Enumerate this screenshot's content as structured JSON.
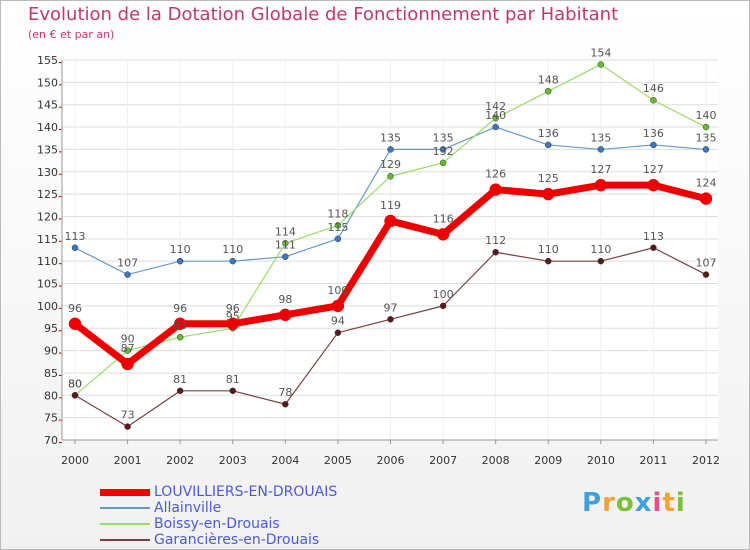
{
  "title": "Evolution de la Dotation Globale de Fonctionnement par Habitant",
  "subtitle": "(en € et par an)",
  "logo": {
    "text": "Proxiti",
    "colors": [
      "#3fa1dc",
      "#f3a23a",
      "#7bbf3a",
      "#3fa1dc",
      "#e94e8a",
      "#f3a23a",
      "#7bbf3a"
    ]
  },
  "chart_data": {
    "type": "line",
    "title": "Evolution de la Dotation Globale de Fonctionnement par Habitant",
    "subtitle": "(en € et par an)",
    "xlabel": "",
    "ylabel": "",
    "x": [
      "2000",
      "2001",
      "2002",
      "2003",
      "2004",
      "2005",
      "2006",
      "2007",
      "2008",
      "2009",
      "2010",
      "2011",
      "2012"
    ],
    "ylim": [
      70,
      155
    ],
    "yticks": [
      70,
      75,
      80,
      85,
      90,
      95,
      100,
      105,
      110,
      115,
      120,
      125,
      130,
      135,
      140,
      145,
      150,
      155
    ],
    "grid": true,
    "legend_position": "bottom-left",
    "series": [
      {
        "name": "Allainville",
        "color": "#6699cc",
        "marker": "#3a78c0",
        "width": 1.2,
        "dot": 3,
        "values": [
          113,
          107,
          110,
          110,
          111,
          115,
          135,
          135,
          140,
          136,
          135,
          136,
          135
        ]
      },
      {
        "name": "Boissy-en-Drouais",
        "color": "#99dd66",
        "marker": "#66bb33",
        "width": 1.2,
        "dot": 3,
        "values": [
          80,
          90,
          93,
          95,
          114,
          118,
          129,
          132,
          142,
          148,
          154,
          146,
          140
        ]
      },
      {
        "name": "Garancières-en-Drouais",
        "color": "#7a4040",
        "marker": "#5a1a1a",
        "width": 1.2,
        "dot": 3,
        "values": [
          80,
          73,
          81,
          81,
          78,
          94,
          97,
          100,
          112,
          110,
          110,
          113,
          107
        ]
      },
      {
        "name": "LOUVILLIERS-EN-DROUAIS",
        "color": "#ee0000",
        "marker": "#ee0000",
        "width": 7,
        "dot": 6,
        "values": [
          96,
          87,
          96,
          96,
          98,
          100,
          119,
          116,
          126,
          125,
          127,
          127,
          124
        ]
      }
    ],
    "data_labels": {
      "Allainville": [
        "113",
        "107",
        "110",
        "110",
        "111",
        "115",
        "135",
        "135",
        "140",
        "136",
        "135",
        "136",
        "135"
      ],
      "Boissy-en-Drouais": [
        "80",
        "90",
        "93",
        "95",
        "114",
        "118",
        "129",
        "132",
        "142",
        "148",
        "154",
        "146",
        "140"
      ],
      "Garancières-en-Drouais": [
        "80",
        "73",
        "81",
        "81",
        "78",
        "94",
        "97",
        "100",
        "112",
        "110",
        "110",
        "113",
        "107"
      ],
      "LOUVILLIERS-EN-DROUAIS": [
        "96",
        "87",
        "96",
        "96",
        "98",
        "100",
        "119",
        "116",
        "126",
        "125",
        "127",
        "127",
        "124"
      ]
    }
  },
  "legend": [
    {
      "label": "LOUVILLIERS-EN-DROUAIS",
      "color": "#ee0000",
      "thickness": 7
    },
    {
      "label": "Allainville",
      "color": "#6699cc",
      "thickness": 2
    },
    {
      "label": "Boissy-en-Drouais",
      "color": "#99dd66",
      "thickness": 2
    },
    {
      "label": "Garancières-en-Drouais",
      "color": "#7a4040",
      "thickness": 2
    }
  ]
}
